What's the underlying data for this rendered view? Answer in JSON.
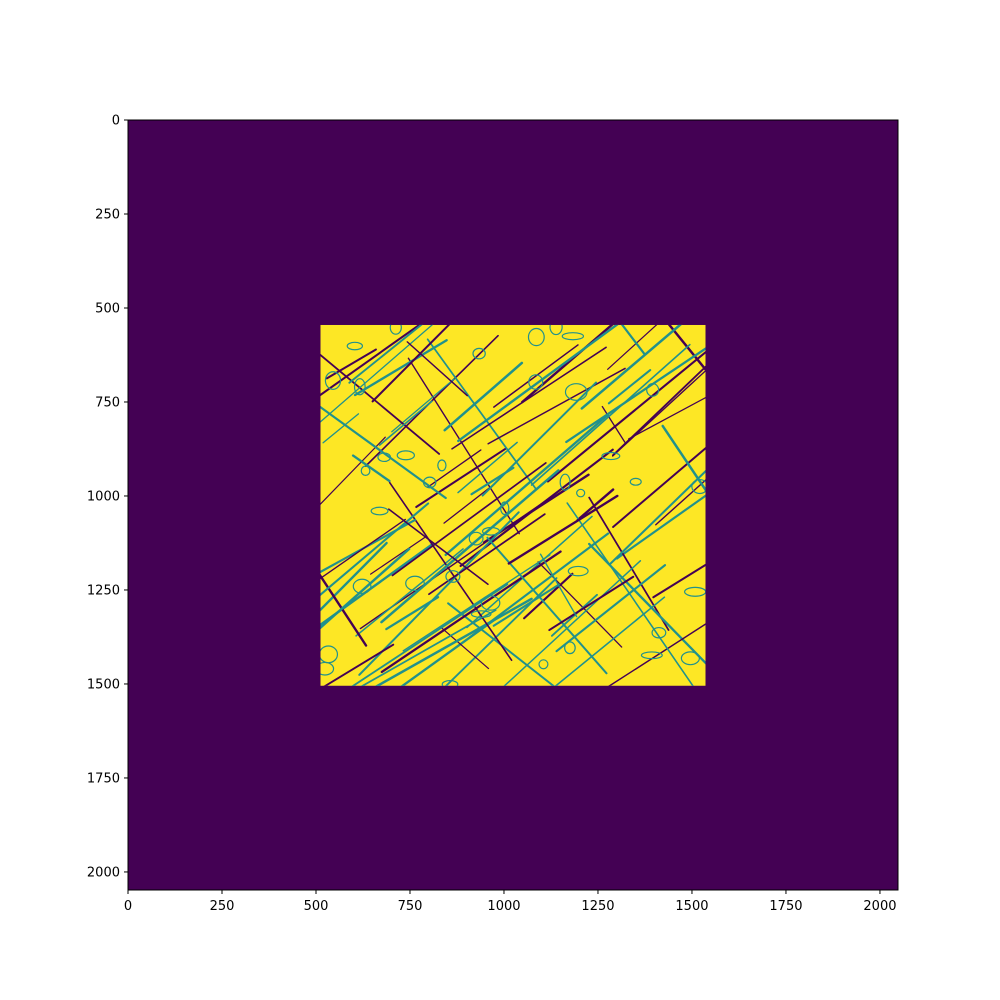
{
  "chart_data": {
    "type": "heatmap",
    "title": "",
    "xlabel": "",
    "ylabel": "",
    "xlim": [
      0,
      2048
    ],
    "ylim": [
      2048,
      0
    ],
    "x_ticks": [
      0,
      250,
      500,
      750,
      1000,
      1250,
      1500,
      1750,
      2000
    ],
    "x_tick_labels": [
      "0",
      "250",
      "500",
      "750",
      "1000",
      "1250",
      "1500",
      "1750",
      "2000"
    ],
    "y_ticks": [
      0,
      250,
      500,
      750,
      1000,
      1250,
      1500,
      1750,
      2000
    ],
    "y_tick_labels": [
      "0",
      "250",
      "500",
      "750",
      "1000",
      "1250",
      "1500",
      "1750",
      "2000"
    ],
    "grid": false,
    "colormap": "viridis",
    "background_value_color": "#440154",
    "foreground_value_color": "#fde725",
    "edge_value_color": "#21918c",
    "background_region": {
      "x": [
        0,
        2048
      ],
      "y": [
        0,
        2048
      ],
      "value": 0
    },
    "foreground_region": {
      "x": [
        512,
        1536
      ],
      "y": [
        545,
        1505
      ],
      "value": 1
    }
  }
}
